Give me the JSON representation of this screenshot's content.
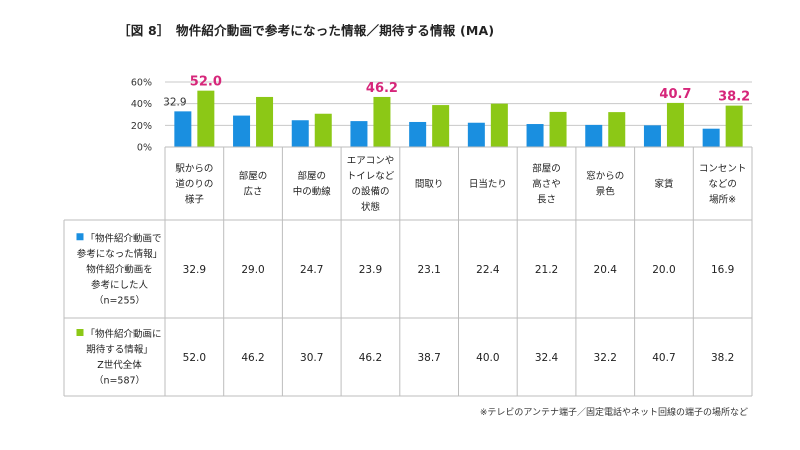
{
  "title": "［図 8］　物件紹介動画で参考になった情報／期待する情報 (MA)",
  "footnote": "※テレビのアンテナ端子／固定電話やネット回線の端子の場所など",
  "chart_data": {
    "type": "bar",
    "title": "［図 8］　物件紹介動画で参考になった情報／期待する情報 (MA)",
    "ylim": [
      0,
      60
    ],
    "yticks": [
      "0%",
      "20%",
      "40%",
      "60%"
    ],
    "grid": true,
    "categories": [
      [
        "駅からの",
        "道のりの",
        "様子"
      ],
      [
        "部屋の",
        "広さ"
      ],
      [
        "部屋の",
        "中の動線"
      ],
      [
        "エアコンや",
        "トイレなど",
        "の設備の",
        "状態"
      ],
      [
        "間取り"
      ],
      [
        "日当たり"
      ],
      [
        "部屋の",
        "高さや",
        "長さ"
      ],
      [
        "窓からの",
        "景色"
      ],
      [
        "家賃"
      ],
      [
        "コンセント",
        "などの",
        "場所※"
      ]
    ],
    "series": [
      {
        "name": "「物件紹介動画で参考になった情報」物件紹介動画を参考にした人（n=255）",
        "label_lines": [
          "■「物件紹介動画で",
          "参考になった情報」",
          "物件紹介動画を",
          "参考にした人",
          "（n=255）"
        ],
        "color": "#1a8fe0",
        "values": [
          32.9,
          29.0,
          24.7,
          23.9,
          23.1,
          22.4,
          21.2,
          20.4,
          20.0,
          16.9
        ],
        "display": [
          "32.9",
          "29.0",
          "24.7",
          "23.9",
          "23.1",
          "22.4",
          "21.2",
          "20.4",
          "20.0",
          "16.9"
        ]
      },
      {
        "name": "「物件紹介動画に期待する情報」Z世代全体（n=587）",
        "label_lines": [
          "■「物件紹介動画に",
          "期待する情報」",
          "Z世代全体",
          "（n=587）"
        ],
        "color": "#8cc816",
        "values": [
          52.0,
          46.2,
          30.7,
          46.2,
          38.7,
          40.0,
          32.4,
          32.2,
          40.7,
          38.2
        ],
        "display": [
          "52.0",
          "46.2",
          "30.7",
          "46.2",
          "38.7",
          "40.0",
          "32.4",
          "32.2",
          "40.7",
          "38.2"
        ]
      }
    ],
    "bar_annotations": [
      {
        "series": 0,
        "index": 0,
        "text": "32.9",
        "style": "small"
      },
      {
        "series": 1,
        "index": 0,
        "text": "52.0",
        "style": "highlight"
      },
      {
        "series": 1,
        "index": 3,
        "text": "46.2",
        "style": "highlight"
      },
      {
        "series": 1,
        "index": 8,
        "text": "40.7",
        "style": "highlight"
      },
      {
        "series": 1,
        "index": 9,
        "text": "38.2",
        "style": "highlight"
      }
    ]
  }
}
